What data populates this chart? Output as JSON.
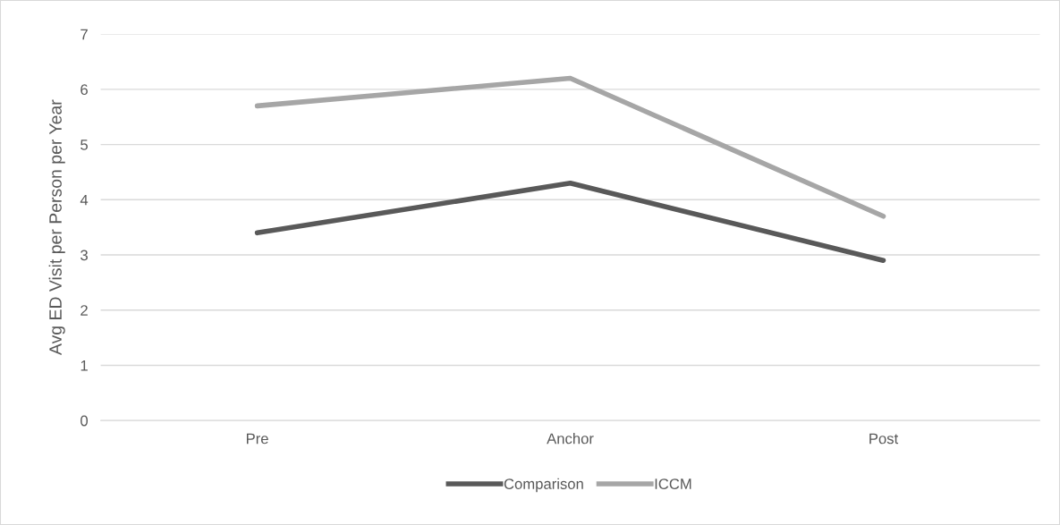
{
  "chart_data": {
    "type": "line",
    "ylabel": "Avg ED Visit per Person per Year",
    "categories": [
      "Pre",
      "Anchor",
      "Post"
    ],
    "series": [
      {
        "name": "Comparison",
        "color": "#595959",
        "values": [
          3.4,
          4.3,
          2.9
        ]
      },
      {
        "name": "ICCM",
        "color": "#a6a6a6",
        "values": [
          5.7,
          6.2,
          3.7
        ]
      }
    ],
    "ylim": [
      0,
      7
    ],
    "yticks": [
      0,
      1,
      2,
      3,
      4,
      5,
      6,
      7
    ],
    "grid": "y",
    "legend": "bottom",
    "marker": "none",
    "line_style": "solid"
  }
}
